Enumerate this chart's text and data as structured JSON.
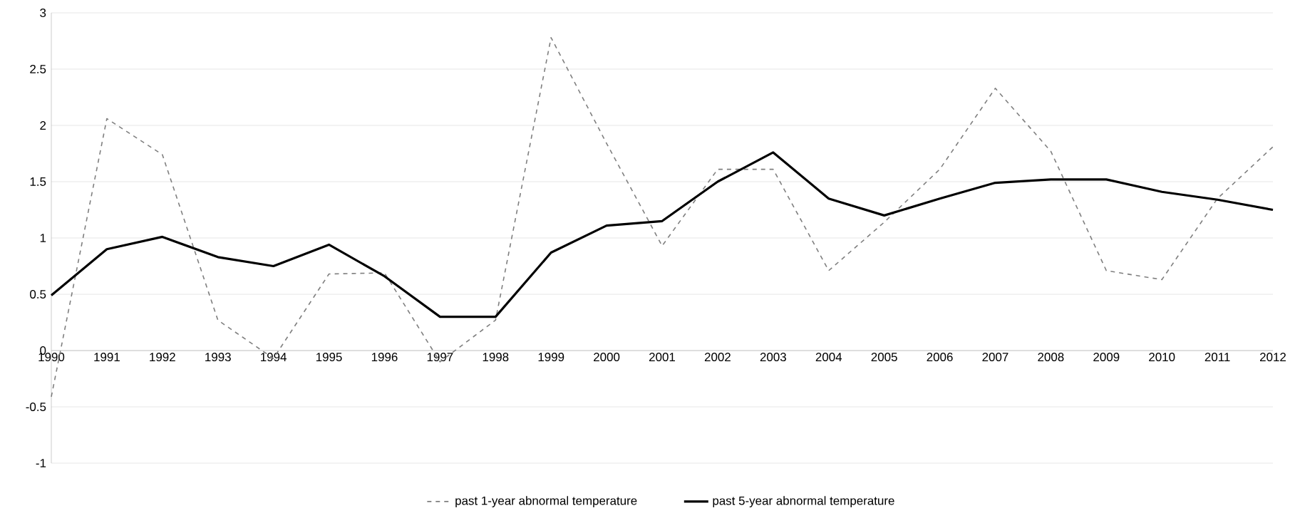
{
  "chart_data": {
    "type": "line",
    "categories": [
      "1990",
      "1991",
      "1992",
      "1993",
      "1994",
      "1995",
      "1996",
      "1997",
      "1998",
      "1999",
      "2000",
      "2001",
      "2002",
      "2003",
      "2004",
      "2005",
      "2006",
      "2007",
      "2008",
      "2009",
      "2010",
      "2011",
      "2012"
    ],
    "series": [
      {
        "name": "past 1-year abnormal temperature",
        "color": "#7f7f7f",
        "line_style": "dashed",
        "values": [
          -0.41,
          2.06,
          1.74,
          0.27,
          -0.07,
          0.68,
          0.69,
          -0.1,
          0.27,
          2.78,
          1.84,
          0.93,
          1.61,
          1.61,
          0.71,
          1.14,
          1.61,
          2.33,
          1.77,
          0.71,
          0.63,
          1.35,
          1.81
        ]
      },
      {
        "name": "past 5-year abnormal temperature",
        "color": "#000000",
        "line_style": "solid",
        "values": [
          0.49,
          0.9,
          1.01,
          0.83,
          0.75,
          0.94,
          0.66,
          0.3,
          0.3,
          0.87,
          1.11,
          1.15,
          1.5,
          1.76,
          1.35,
          1.2,
          1.35,
          1.49,
          1.52,
          1.52,
          1.41,
          1.34,
          1.25
        ]
      }
    ],
    "ylim": [
      -1,
      3
    ],
    "yticks": [
      -1,
      -0.5,
      0,
      0.5,
      1,
      1.5,
      2,
      2.5,
      3
    ],
    "grid": "y",
    "legend": "bottom",
    "marker": "none"
  }
}
